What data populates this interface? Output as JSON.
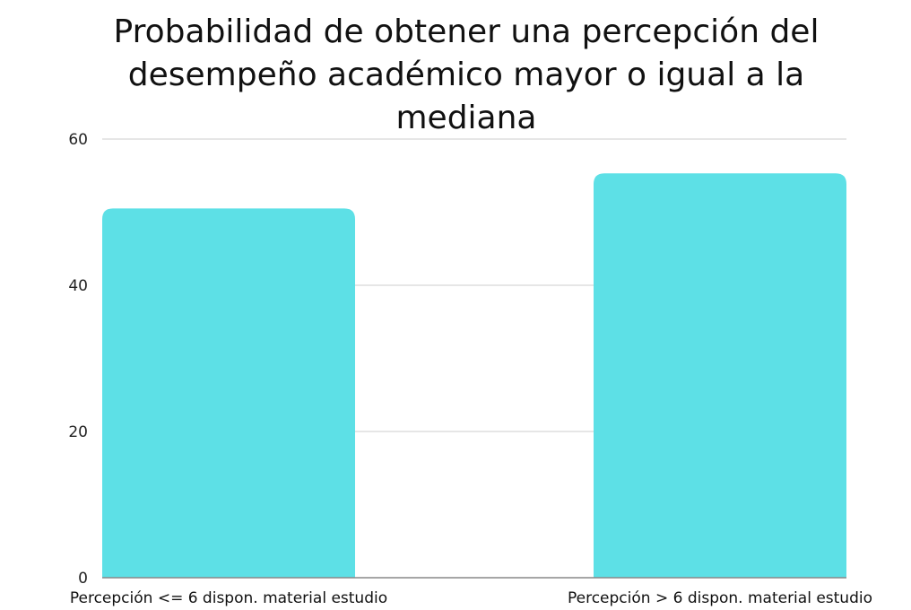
{
  "chart_data": {
    "type": "bar",
    "title": "Probabilidad de obtener una percepción del desempeño académico mayor o igual a la mediana",
    "categories": [
      "Percepción <= 6 dispon. material  estudio",
      "Percepción > 6 dispon. material  estudio"
    ],
    "values": [
      50.5,
      55.3
    ],
    "ylim": [
      0,
      60
    ],
    "yticks": [
      0,
      20,
      40,
      60
    ],
    "xlabel": "",
    "ylabel": "",
    "grid": true,
    "legend": false,
    "colors": {
      "bar": "#5de0e6",
      "grid": "#cccccc",
      "axis": "#888888"
    }
  }
}
